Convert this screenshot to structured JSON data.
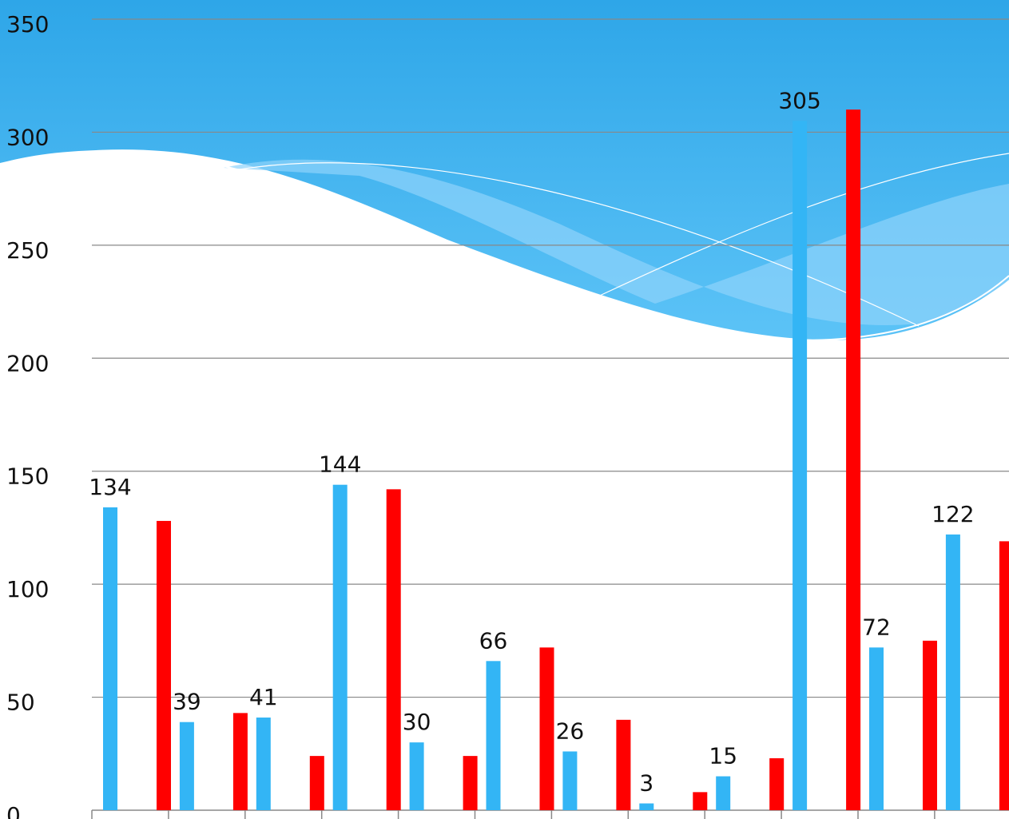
{
  "chart_data": {
    "type": "bar",
    "categories": [
      null,
      null,
      null,
      null,
      null,
      null,
      null,
      null,
      null,
      null,
      null,
      null
    ],
    "series": [
      {
        "color": "#33b5f5",
        "values": [
          134,
          39,
          41,
          144,
          30,
          66,
          26,
          3,
          15,
          305,
          72,
          122
        ],
        "value_labels": [
          "134",
          "39",
          "41",
          "144",
          "30",
          "66",
          "26",
          "3",
          "15",
          "305",
          "72",
          "122"
        ]
      },
      {
        "color": "#ff0000",
        "values": [
          128,
          43,
          24,
          142,
          24,
          72,
          40,
          8,
          23,
          310,
          75,
          119
        ]
      }
    ],
    "ylim": [
      0,
      350
    ],
    "yticks": [
      0,
      50,
      100,
      150,
      200,
      250,
      300,
      350
    ],
    "grid": true
  }
}
